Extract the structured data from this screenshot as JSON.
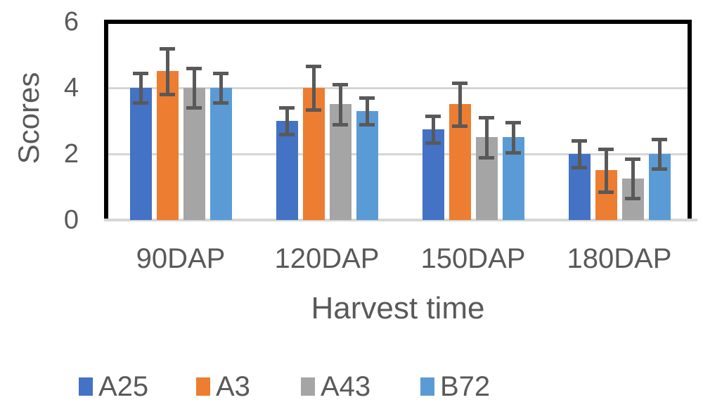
{
  "chart_data": {
    "type": "bar",
    "title": "",
    "xlabel": "Harvest time",
    "ylabel": "Scores",
    "categories": [
      "90DAP",
      "120DAP",
      "150DAP",
      "180DAP"
    ],
    "series": [
      {
        "name": "A25",
        "color": "#4472C4",
        "values": [
          4.0,
          3.0,
          2.75,
          2.0
        ],
        "errors": [
          0.45,
          0.4,
          0.4,
          0.4
        ]
      },
      {
        "name": "A3",
        "color": "#ED7D31",
        "values": [
          4.5,
          4.0,
          3.5,
          1.5
        ],
        "errors": [
          0.7,
          0.65,
          0.65,
          0.65
        ]
      },
      {
        "name": "A43",
        "color": "#A5A5A5",
        "values": [
          4.0,
          3.5,
          2.5,
          1.25
        ],
        "errors": [
          0.6,
          0.6,
          0.6,
          0.6
        ]
      },
      {
        "name": "B72",
        "color": "#5B9BD5",
        "values": [
          4.0,
          3.3,
          2.5,
          2.0
        ],
        "errors": [
          0.45,
          0.4,
          0.45,
          0.45
        ]
      }
    ],
    "ylim": [
      0,
      6
    ],
    "yticks": [
      0,
      2,
      4,
      6
    ],
    "grid": true,
    "legend_position": "bottom",
    "error_bars": true,
    "colors": {
      "error_bar": "#595959",
      "gridline": "#D6D6D6",
      "axis_line_bottom": "#D6D6D6",
      "plot_border": "#000000",
      "text": "#595959"
    }
  }
}
